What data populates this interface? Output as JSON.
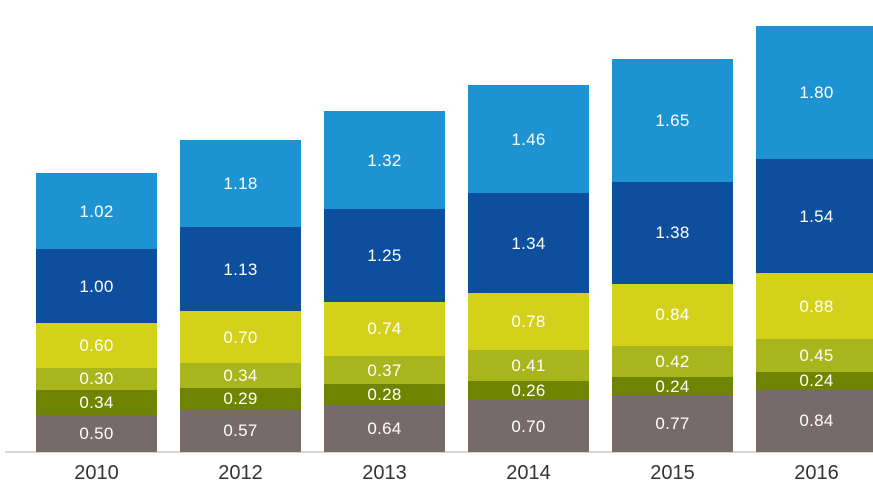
{
  "chart_data": {
    "type": "bar",
    "stacked": true,
    "title": "",
    "legend": "none",
    "grid": "off",
    "series_order": "top-to-bottom",
    "categories": [
      "2010",
      "2012",
      "2013",
      "2014",
      "2015",
      "2016"
    ],
    "series": [
      {
        "name": "light-blue",
        "color": "#1e93d2",
        "values": [
          1.02,
          1.18,
          1.32,
          1.46,
          1.65,
          1.8
        ]
      },
      {
        "name": "dark-blue",
        "color": "#0d4f9d",
        "values": [
          1.0,
          1.13,
          1.25,
          1.34,
          1.38,
          1.54
        ]
      },
      {
        "name": "yellow-green",
        "color": "#d3d11a",
        "values": [
          0.6,
          0.7,
          0.74,
          0.78,
          0.84,
          0.88
        ]
      },
      {
        "name": "olive",
        "color": "#a9b51d",
        "values": [
          0.3,
          0.34,
          0.37,
          0.41,
          0.42,
          0.45
        ]
      },
      {
        "name": "dark-olive",
        "color": "#6f8502",
        "values": [
          0.34,
          0.29,
          0.28,
          0.26,
          0.24,
          0.24
        ]
      },
      {
        "name": "gray",
        "color": "#766b6a",
        "values": [
          0.5,
          0.57,
          0.64,
          0.7,
          0.77,
          0.84
        ]
      }
    ],
    "value_labels": {
      "visible": true,
      "format": "2-decimals",
      "color": "#ffffff"
    },
    "axis": {
      "x_labels": [
        "2010",
        "2012",
        "2013",
        "2014",
        "2015",
        "2016"
      ],
      "x_label_color": "#333333",
      "baseline_visible": true,
      "baseline_color": "#d8d5d5",
      "y_axis_visible": false
    }
  }
}
